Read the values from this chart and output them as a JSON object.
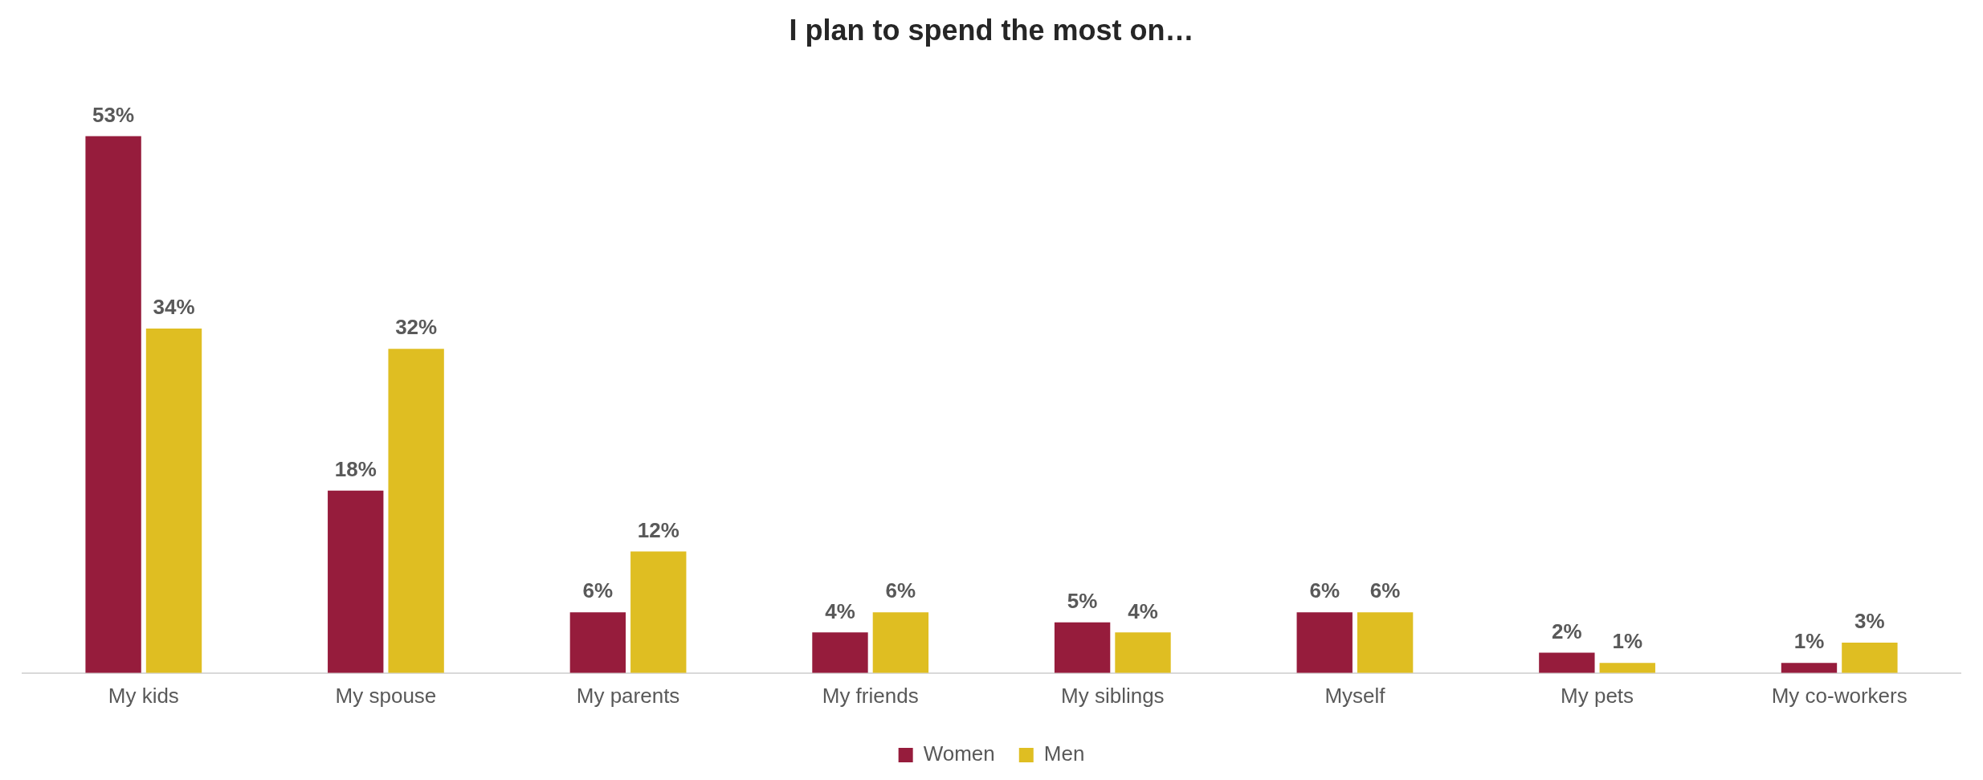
{
  "chart_data": {
    "type": "bar",
    "title": "I plan to spend the most on…",
    "categories": [
      "My kids",
      "My spouse",
      "My parents",
      "My friends",
      "My siblings",
      "Myself",
      "My pets",
      "My co-workers"
    ],
    "series": [
      {
        "name": "Women",
        "color": "#961c3c",
        "values": [
          53,
          18,
          6,
          4,
          5,
          6,
          2,
          1
        ],
        "value_labels": [
          "53%",
          "18%",
          "6%",
          "4%",
          "5%",
          "6%",
          "2%",
          "1%"
        ]
      },
      {
        "name": "Men",
        "color": "#dfbe22",
        "values": [
          34,
          32,
          12,
          6,
          4,
          6,
          1,
          3
        ],
        "value_labels": [
          "34%",
          "32%",
          "12%",
          "6%",
          "4%",
          "6%",
          "1%",
          "3%"
        ]
      }
    ],
    "grid": false,
    "legend": "bottom"
  }
}
